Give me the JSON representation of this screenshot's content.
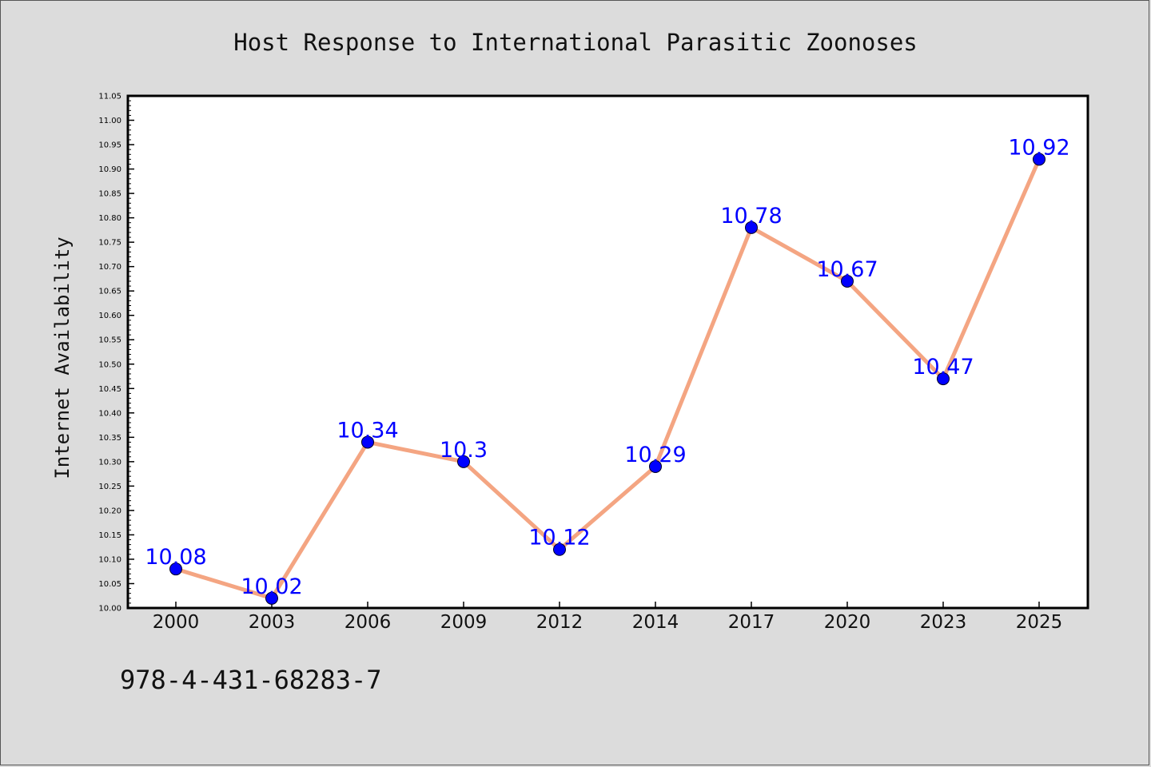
{
  "chart_data": {
    "type": "line",
    "title": "Host Response to International Parasitic Zoonoses",
    "ylabel": "Internet Availability",
    "xlabel": "",
    "categories": [
      "2000",
      "2003",
      "2006",
      "2009",
      "2012",
      "2014",
      "2017",
      "2020",
      "2023",
      "2025"
    ],
    "values": [
      10.08,
      10.02,
      10.34,
      10.3,
      10.12,
      10.29,
      10.78,
      10.67,
      10.47,
      10.92
    ],
    "data_labels": [
      "10.08",
      "10.02",
      "10.34",
      "10.3",
      "10.12",
      "10.29",
      "10.78",
      "10.67",
      "10.47",
      "10.92"
    ],
    "ylim": [
      10.0,
      11.05
    ],
    "y_ticks": [
      "10.00",
      "10.05",
      "10.10",
      "10.15",
      "10.20",
      "10.25",
      "10.30",
      "10.35",
      "10.40",
      "10.45",
      "10.50",
      "10.55",
      "10.60",
      "10.65",
      "10.70",
      "10.75",
      "10.80",
      "10.85",
      "10.90",
      "10.95",
      "11.00",
      "11.05"
    ],
    "grid": false,
    "legend": "none",
    "colors": {
      "line": "#f4a582",
      "marker": "#0000ff",
      "data_label": "#0000ff",
      "background": "#dcdcdc",
      "plot_background": "#ffffff"
    }
  },
  "footer": {
    "code": "978-4-431-68283-7"
  }
}
